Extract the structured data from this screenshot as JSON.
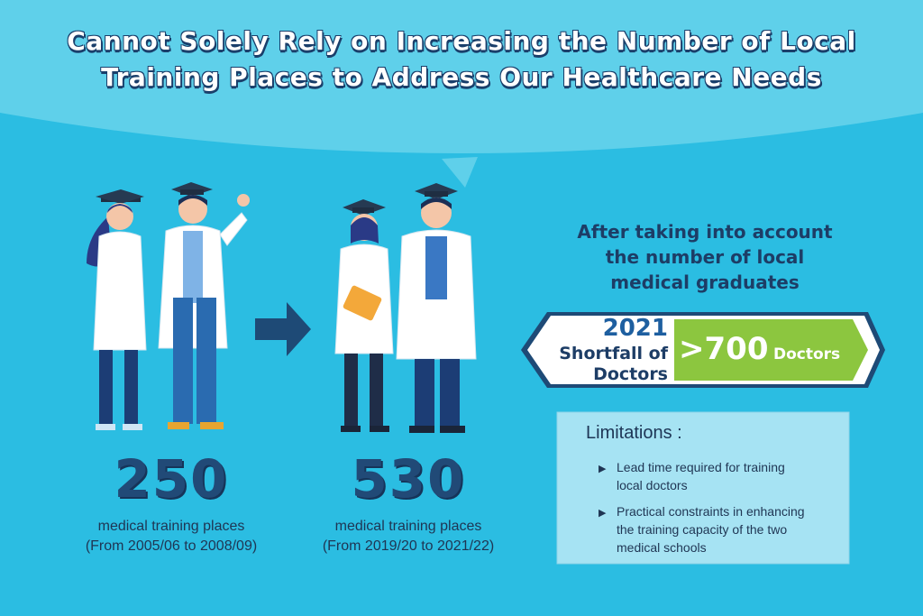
{
  "title": "Cannot Solely Rely on Increasing the Number of Local Training Places to Address Our Healthcare Needs",
  "colors": {
    "background": "#2bbde2",
    "navy": "#214a77",
    "green": "#8cc63f",
    "banner_white": "#ffffff",
    "panel": "#a6e3f3"
  },
  "left_stat": {
    "number": "250",
    "label_line1": "medical training places",
    "label_line2": "(From 2005/06 to 2008/09)"
  },
  "right_stat": {
    "number": "530",
    "label_line1": "medical training places",
    "label_line2": "(From 2019/20 to 2021/22)"
  },
  "account_text": {
    "line1": "After taking into account",
    "line2": "the number of local",
    "line3": "medical graduates"
  },
  "shortfall": {
    "year": "2021",
    "line1": "Shortfall of",
    "line2": "Doctors",
    "value": "700",
    "unit": "Doctors"
  },
  "limitations": {
    "title": "Limitations :",
    "items": [
      {
        "line1": "Lead time required for training",
        "line2": "local doctors",
        "line3": ""
      },
      {
        "line1": "Practical constraints in enhancing",
        "line2": "the training capacity of the two",
        "line3": "medical schools"
      }
    ]
  },
  "icons": {
    "arrow": "arrow-right-icon",
    "bullet": "chevron-right-icon",
    "greater_than": "greater-than-icon"
  }
}
